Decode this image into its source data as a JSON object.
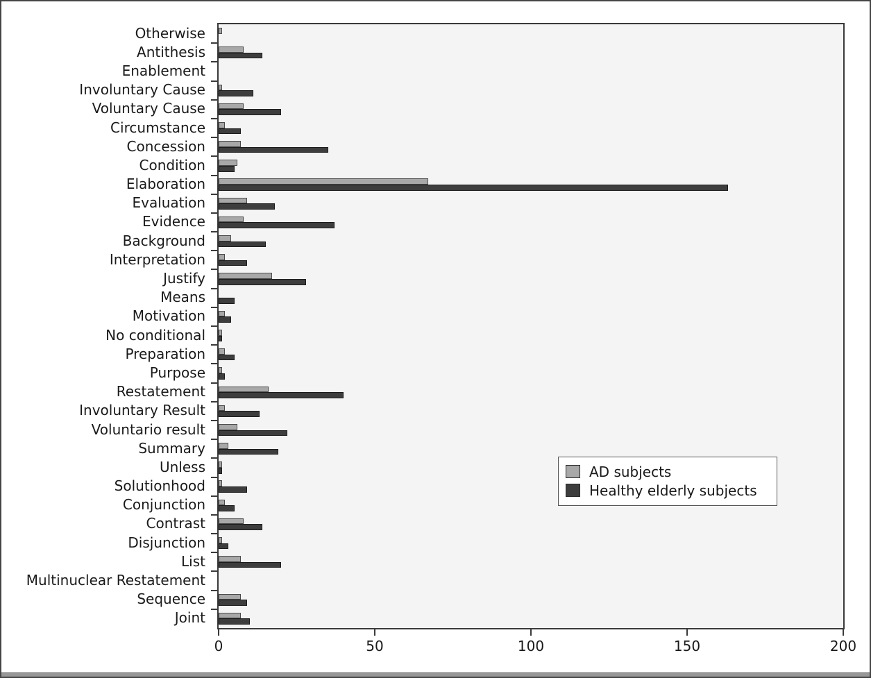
{
  "chart_data": {
    "type": "bar",
    "orientation": "horizontal",
    "title": "",
    "xlabel": "",
    "ylabel": "",
    "xlim": [
      0,
      200
    ],
    "x_ticks": [
      0,
      50,
      100,
      150,
      200
    ],
    "grid": false,
    "legend_position": "center-right-inside",
    "categories": [
      "Otherwise",
      "Antithesis",
      "Enablement",
      "Involuntary Cause",
      "Voluntary Cause",
      "Circumstance",
      "Concession",
      "Condition",
      "Elaboration",
      "Evaluation",
      "Evidence",
      "Background",
      "Interpretation",
      "Justify",
      "Means",
      "Motivation",
      "No conditional",
      "Preparation",
      "Purpose",
      "Restatement",
      "Involuntary Result",
      "Voluntario result",
      "Summary",
      "Unless",
      "Solutionhood",
      "Conjunction",
      "Contrast",
      "Disjunction",
      "List",
      "Multinuclear Restatement",
      "Sequence",
      "Joint"
    ],
    "series": [
      {
        "name": "AD subjects",
        "color": "#a8a8a8",
        "edge_color": "#4a4a4a",
        "values": [
          1,
          8,
          0,
          1,
          8,
          2,
          7,
          6,
          67,
          9,
          8,
          4,
          2,
          17,
          0,
          2,
          1,
          2,
          1,
          16,
          2,
          6,
          3,
          1,
          1,
          2,
          8,
          1,
          7,
          0,
          7,
          7
        ]
      },
      {
        "name": "Healthy elderly subjects",
        "color": "#3d3d3d",
        "edge_color": "#1c1c1c",
        "values": [
          0,
          14,
          0,
          11,
          20,
          7,
          35,
          5,
          163,
          18,
          37,
          15,
          9,
          28,
          5,
          4,
          1,
          5,
          2,
          40,
          13,
          22,
          19,
          1,
          9,
          5,
          14,
          3,
          20,
          0,
          9,
          10
        ]
      }
    ]
  },
  "colors": {
    "plot_bg": "#f4f4f4",
    "page_bg": "#ffffff",
    "frame": "#454545",
    "spine": "#3a3a3a",
    "text": "#1a1a1a",
    "legend_border": "#555555",
    "legend_bg": "#ffffff"
  }
}
